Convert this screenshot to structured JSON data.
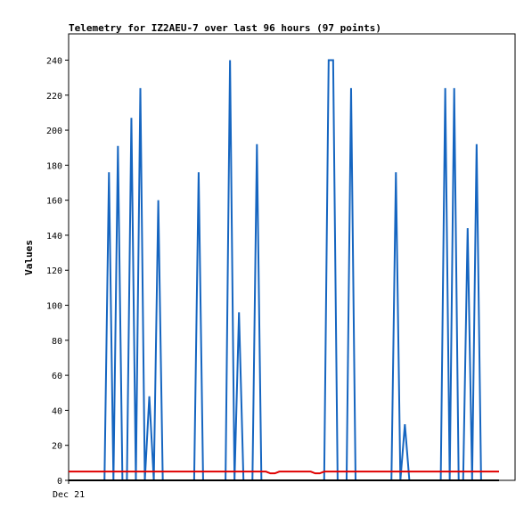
{
  "chart_data": {
    "type": "line",
    "title": "Telemetry for IZ2AEU-7 over last 96 hours (97 points)",
    "ylabel": "Values",
    "xlabel": "",
    "x_tick_labels": [
      "Dec 21"
    ],
    "ylim": [
      0,
      255
    ],
    "yticks": [
      0,
      20,
      40,
      60,
      80,
      100,
      120,
      140,
      160,
      180,
      200,
      220,
      240
    ],
    "grid": false,
    "legend": "none",
    "series": [
      {
        "color": "#1565c0",
        "values": [
          0,
          0,
          0,
          0,
          0,
          0,
          0,
          0,
          0,
          176,
          0,
          191,
          0,
          0,
          207,
          0,
          224,
          0,
          48,
          0,
          160,
          0,
          0,
          0,
          0,
          0,
          0,
          0,
          0,
          176,
          0,
          0,
          0,
          0,
          0,
          0,
          240,
          0,
          96,
          0,
          0,
          0,
          192,
          0,
          0,
          0,
          0,
          0,
          0,
          0,
          0,
          0,
          0,
          0,
          0,
          0,
          0,
          0,
          240,
          240,
          0,
          0,
          0,
          224,
          0,
          0,
          0,
          0,
          0,
          0,
          0,
          0,
          0,
          176,
          0,
          32,
          0,
          0,
          0,
          0,
          0,
          0,
          0,
          0,
          224,
          0,
          224,
          0,
          0,
          144,
          0,
          192,
          0,
          0,
          0,
          0,
          0
        ]
      },
      {
        "color": "#e00000",
        "values": [
          5,
          5,
          5,
          5,
          5,
          5,
          5,
          5,
          5,
          5,
          5,
          5,
          5,
          5,
          5,
          5,
          5,
          5,
          5,
          5,
          5,
          5,
          5,
          5,
          5,
          5,
          5,
          5,
          5,
          5,
          5,
          5,
          5,
          5,
          5,
          5,
          5,
          5,
          5,
          5,
          5,
          5,
          5,
          5,
          5,
          4,
          4,
          5,
          5,
          5,
          5,
          5,
          5,
          5,
          5,
          4,
          4,
          5,
          5,
          5,
          5,
          5,
          5,
          5,
          5,
          5,
          5,
          5,
          5,
          5,
          5,
          5,
          5,
          5,
          5,
          5,
          5,
          5,
          5,
          5,
          5,
          5,
          5,
          5,
          5,
          5,
          5,
          5,
          5,
          5,
          5,
          5,
          5,
          5,
          5,
          5,
          5
        ]
      },
      {
        "color": "#000000",
        "values": [
          0,
          0,
          0,
          0,
          0,
          0,
          0,
          0,
          0,
          0,
          0,
          0,
          0,
          0,
          0,
          0,
          0,
          0,
          0,
          0,
          0,
          0,
          0,
          0,
          0,
          0,
          0,
          0,
          0,
          0,
          0,
          0,
          0,
          0,
          0,
          0,
          0,
          0,
          0,
          0,
          0,
          0,
          0,
          0,
          0,
          0,
          0,
          0,
          0,
          0,
          0,
          0,
          0,
          0,
          0,
          0,
          0,
          0,
          0,
          0,
          0,
          0,
          0,
          0,
          0,
          0,
          0,
          0,
          0,
          0,
          0,
          0,
          0,
          0,
          0,
          0,
          0,
          0,
          0,
          0,
          0,
          0,
          0,
          0,
          0,
          0,
          0,
          0,
          0,
          0,
          0,
          0,
          0,
          0,
          0,
          0,
          0
        ]
      }
    ]
  }
}
